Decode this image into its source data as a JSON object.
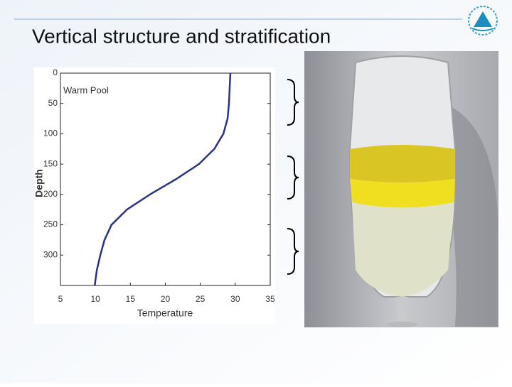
{
  "title": "Vertical structure and stratification",
  "chart_data": {
    "type": "line",
    "annotation": "Warm Pool",
    "xlabel": "Temperature",
    "ylabel": "Depth",
    "x": [
      29.3,
      29.2,
      29.1,
      28.9,
      28.3,
      27.0,
      24.8,
      21.5,
      17.8,
      14.5,
      12.3,
      11.3,
      10.7,
      10.2,
      9.9
    ],
    "series": [
      {
        "color": "#27338a",
        "values": [
          0,
          25,
          50,
          75,
          100,
          125,
          150,
          175,
          200,
          225,
          250,
          275,
          300,
          325,
          350
        ]
      }
    ],
    "xlim": [
      5,
      35
    ],
    "xticks": [
      5,
      10,
      15,
      20,
      25,
      30,
      35
    ],
    "ylim": [
      0,
      350
    ],
    "yticks": [
      0,
      50,
      100,
      150,
      200,
      250,
      300
    ],
    "y_inverted": true
  }
}
